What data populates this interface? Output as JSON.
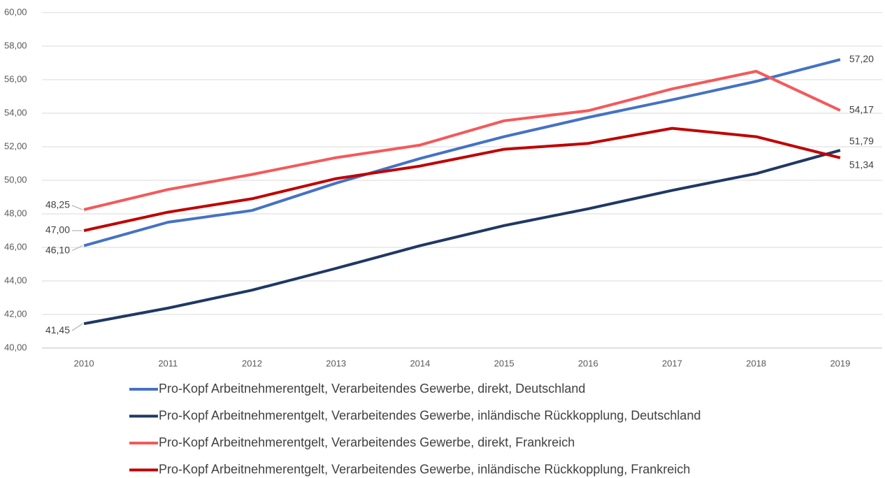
{
  "chart_data": {
    "type": "line",
    "categories": [
      "2010",
      "2011",
      "2012",
      "2013",
      "2014",
      "2015",
      "2016",
      "2017",
      "2018",
      "2019"
    ],
    "ylim": [
      40,
      60
    ],
    "yticks": [
      {
        "value": 40,
        "label": "40,00"
      },
      {
        "value": 42,
        "label": "42,00"
      },
      {
        "value": 44,
        "label": "44,00"
      },
      {
        "value": 46,
        "label": "46,00"
      },
      {
        "value": 48,
        "label": "48,00"
      },
      {
        "value": 50,
        "label": "50,00"
      },
      {
        "value": 52,
        "label": "52,00"
      },
      {
        "value": 54,
        "label": "54,00"
      },
      {
        "value": 56,
        "label": "56,00"
      },
      {
        "value": 58,
        "label": "58,00"
      },
      {
        "value": 60,
        "label": "60,00"
      }
    ],
    "grid": true,
    "series": [
      {
        "name": "Pro-Kopf Arbeitnehmerentgelt, Verarbeitendes Gewerbe, direkt, Deutschland",
        "color": "#4472c4",
        "values": [
          46.1,
          47.5,
          48.2,
          49.83,
          51.3,
          52.6,
          53.75,
          54.8,
          55.9,
          57.2
        ],
        "value_labels": [
          "46,10",
          null,
          null,
          null,
          null,
          null,
          null,
          null,
          null,
          "57,20"
        ]
      },
      {
        "name": "Pro-Kopf Arbeitnehmerentgelt, Verarbeitendes Gewerbe, inländische Rückkopplung, Deutschland",
        "color": "#203864",
        "values": [
          41.45,
          42.38,
          43.45,
          44.75,
          46.1,
          47.3,
          48.3,
          49.4,
          50.4,
          51.79
        ],
        "value_labels": [
          "41,45",
          null,
          null,
          null,
          null,
          null,
          null,
          null,
          null,
          "51,79"
        ]
      },
      {
        "name": "Pro-Kopf Arbeitnehmerentgelt, Verarbeitendes Gewerbe, direkt, Frankreich",
        "color": "#f4595a",
        "values": [
          48.25,
          49.45,
          50.35,
          51.35,
          52.1,
          53.55,
          54.15,
          55.45,
          56.5,
          54.17
        ],
        "value_labels": [
          "48,25",
          null,
          null,
          null,
          null,
          null,
          null,
          null,
          null,
          "54,17"
        ]
      },
      {
        "name": "Pro-Kopf Arbeitnehmerentgelt, Verarbeitendes Gewerbe, inländische Rückkopplung, Frankreich",
        "color": "#c00000",
        "values": [
          47.0,
          48.1,
          48.9,
          50.1,
          50.85,
          51.85,
          52.2,
          53.1,
          52.6,
          51.34
        ],
        "value_labels": [
          "47,00",
          null,
          null,
          null,
          null,
          null,
          null,
          null,
          null,
          "51,34"
        ]
      }
    ]
  }
}
